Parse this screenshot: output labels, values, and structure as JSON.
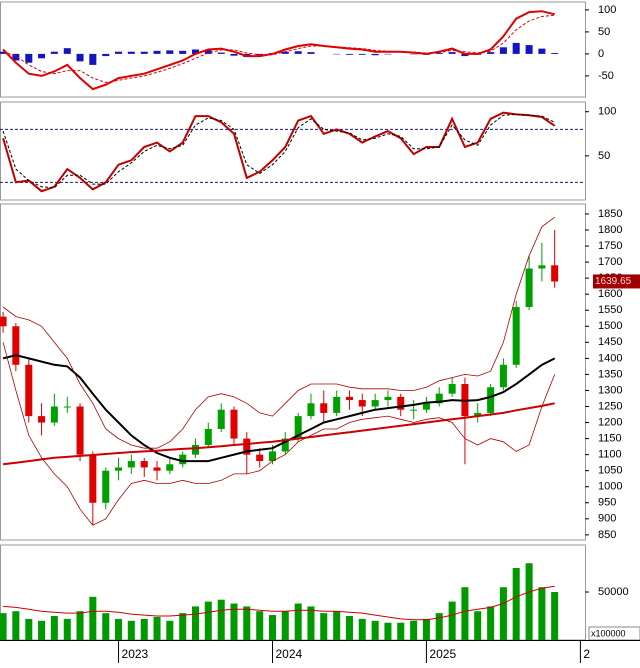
{
  "chart_data": [
    {
      "type": "line",
      "ylim": [
        -98,
        118
      ],
      "yticks": [
        100,
        50,
        0,
        -50
      ],
      "series": [
        {
          "color": "#e00000",
          "values": [
            10,
            -20,
            -45,
            -50,
            -40,
            -25,
            -55,
            -80,
            -70,
            -55,
            -50,
            -45,
            -35,
            -25,
            -15,
            0,
            10,
            12,
            5,
            -5,
            -5,
            0,
            10,
            18,
            22,
            18,
            15,
            12,
            10,
            5,
            5,
            5,
            3,
            0,
            5,
            12,
            0,
            0,
            10,
            40,
            80,
            95,
            97,
            90
          ]
        },
        {
          "color": "#e00000",
          "dashed": true,
          "values": [
            5,
            -5,
            -25,
            -40,
            -45,
            -38,
            -38,
            -55,
            -65,
            -60,
            -55,
            -50,
            -42,
            -33,
            -22,
            -10,
            2,
            9,
            9,
            2,
            -2,
            -2,
            5,
            12,
            18,
            18,
            16,
            14,
            12,
            8,
            6,
            5,
            4,
            2,
            3,
            8,
            5,
            2,
            6,
            25,
            55,
            75,
            85,
            88
          ]
        },
        {
          "type": "bar",
          "color": "#1515c0",
          "values": [
            5,
            -15,
            -20,
            -10,
            5,
            13,
            -17,
            -25,
            -5,
            5,
            5,
            5,
            7,
            8,
            7,
            10,
            8,
            3,
            -4,
            -7,
            -3,
            2,
            5,
            6,
            4,
            0,
            -1,
            -2,
            -2,
            -3,
            -1,
            0,
            -1,
            -2,
            2,
            4,
            -5,
            -2,
            4,
            15,
            25,
            20,
            12,
            2
          ]
        }
      ]
    },
    {
      "type": "line",
      "ylim": [
        0,
        111
      ],
      "yticks": [
        100,
        50
      ],
      "hlines": [
        80,
        20
      ],
      "hline_color": "#1a1a80",
      "series": [
        {
          "color": "#c00000",
          "values": [
            70,
            20,
            22,
            10,
            15,
            35,
            25,
            12,
            20,
            40,
            45,
            60,
            65,
            55,
            65,
            95,
            95,
            88,
            75,
            25,
            32,
            45,
            60,
            90,
            95,
            75,
            80,
            75,
            65,
            72,
            78,
            70,
            52,
            60,
            60,
            92,
            60,
            65,
            92,
            99,
            97,
            96,
            94,
            84
          ]
        },
        {
          "color": "#000000",
          "dashed": true,
          "values": [
            78,
            35,
            22,
            15,
            14,
            28,
            28,
            18,
            18,
            32,
            42,
            55,
            62,
            58,
            62,
            85,
            93,
            90,
            80,
            40,
            30,
            40,
            55,
            82,
            92,
            80,
            78,
            76,
            68,
            70,
            75,
            72,
            58,
            58,
            60,
            85,
            68,
            62,
            85,
            96,
            97,
            96,
            95,
            88
          ]
        }
      ]
    },
    {
      "type": "candlestick",
      "ylim": [
        834,
        1881
      ],
      "yticks": [
        1850,
        1800,
        1750,
        1700,
        1650,
        1600,
        1550,
        1500,
        1450,
        1400,
        1350,
        1300,
        1250,
        1200,
        1150,
        1100,
        1050,
        1000,
        950,
        900,
        850
      ],
      "up_color": "#00a000",
      "down_color": "#e00000",
      "tag_color": "#a00000",
      "open": [
        1530,
        1500,
        1380,
        1220,
        1200,
        1250,
        1250,
        1100,
        950,
        1050,
        1060,
        1080,
        1060,
        1050,
        1070,
        1100,
        1130,
        1180,
        1240,
        1150,
        1100,
        1080,
        1110,
        1150,
        1220,
        1260,
        1230,
        1280,
        1270,
        1250,
        1270,
        1280,
        1240,
        1240,
        1260,
        1290,
        1320,
        1220,
        1230,
        1310,
        1380,
        1560,
        1680,
        1690
      ],
      "high": [
        1545,
        1510,
        1400,
        1260,
        1290,
        1280,
        1260,
        1110,
        1060,
        1090,
        1100,
        1090,
        1080,
        1090,
        1110,
        1150,
        1200,
        1260,
        1250,
        1170,
        1120,
        1130,
        1170,
        1230,
        1290,
        1300,
        1300,
        1300,
        1290,
        1290,
        1300,
        1290,
        1270,
        1280,
        1310,
        1340,
        1340,
        1260,
        1320,
        1400,
        1580,
        1720,
        1760,
        1800
      ],
      "low": [
        1480,
        1360,
        1200,
        1160,
        1190,
        1230,
        1080,
        880,
        930,
        1020,
        1040,
        1030,
        1020,
        1040,
        1060,
        1090,
        1120,
        1170,
        1130,
        1040,
        1060,
        1070,
        1100,
        1140,
        1210,
        1200,
        1220,
        1240,
        1220,
        1240,
        1250,
        1220,
        1210,
        1230,
        1250,
        1280,
        1070,
        1200,
        1220,
        1300,
        1370,
        1550,
        1640,
        1620
      ],
      "close": [
        1500,
        1380,
        1220,
        1200,
        1250,
        1250,
        1100,
        950,
        1050,
        1060,
        1080,
        1060,
        1050,
        1070,
        1100,
        1130,
        1180,
        1240,
        1150,
        1100,
        1080,
        1110,
        1150,
        1220,
        1260,
        1230,
        1280,
        1270,
        1250,
        1270,
        1280,
        1240,
        1240,
        1260,
        1290,
        1320,
        1220,
        1230,
        1310,
        1380,
        1560,
        1680,
        1690,
        1639.65
      ],
      "overlays": [
        {
          "color": "#000000",
          "width": 2,
          "values": [
            1400,
            1410,
            1400,
            1390,
            1380,
            1375,
            1340,
            1290,
            1240,
            1200,
            1160,
            1130,
            1105,
            1090,
            1080,
            1080,
            1080,
            1090,
            1100,
            1110,
            1115,
            1120,
            1140,
            1160,
            1180,
            1200,
            1210,
            1220,
            1230,
            1240,
            1245,
            1250,
            1255,
            1262,
            1265,
            1270,
            1268,
            1270,
            1280,
            1295,
            1320,
            1350,
            1380,
            1400
          ]
        },
        {
          "color": "#cc0000",
          "width": 2,
          "values": [
            1070,
            1075,
            1080,
            1085,
            1090,
            1093,
            1096,
            1099,
            1102,
            1105,
            1108,
            1110,
            1112,
            1115,
            1118,
            1120,
            1123,
            1126,
            1130,
            1133,
            1137,
            1140,
            1145,
            1150,
            1155,
            1160,
            1165,
            1170,
            1175,
            1180,
            1185,
            1190,
            1195,
            1200,
            1205,
            1210,
            1215,
            1220,
            1225,
            1230,
            1238,
            1245,
            1252,
            1260
          ]
        },
        {
          "color": "#b00000",
          "width": 0.8,
          "values": [
            1560,
            1530,
            1520,
            1500,
            1450,
            1400,
            1320,
            1260,
            1180,
            1150,
            1130,
            1120,
            1120,
            1140,
            1180,
            1240,
            1280,
            1290,
            1280,
            1260,
            1230,
            1220,
            1260,
            1300,
            1320,
            1320,
            1320,
            1310,
            1305,
            1305,
            1305,
            1300,
            1300,
            1310,
            1330,
            1340,
            1350,
            1345,
            1360,
            1450,
            1600,
            1720,
            1810,
            1840
          ]
        },
        {
          "color": "#b00000",
          "width": 0.8,
          "values": [
            1450,
            1300,
            1160,
            1090,
            1040,
            1000,
            930,
            880,
            900,
            960,
            1010,
            1020,
            1010,
            1010,
            1020,
            1010,
            1010,
            1020,
            1040,
            1040,
            1050,
            1080,
            1100,
            1140,
            1160,
            1180,
            1180,
            1200,
            1210,
            1215,
            1220,
            1210,
            1200,
            1210,
            1215,
            1200,
            1150,
            1130,
            1150,
            1140,
            1110,
            1130,
            1250,
            1350
          ]
        }
      ]
    },
    {
      "type": "bar",
      "ylim": [
        0,
        99000
      ],
      "yticks": [
        50000
      ],
      "color": "#009a00",
      "ma_color": "#cc0000",
      "axis_multiplier_label": "x100000",
      "xlim": [
        2022.23,
        2026.03
      ],
      "xticks": [
        2023,
        2024,
        2025,
        {
          "value": 2026,
          "label": "2"
        }
      ],
      "x": [
        2022.25,
        2022.333,
        2022.417,
        2022.5,
        2022.583,
        2022.667,
        2022.75,
        2022.833,
        2022.917,
        2023,
        2023.083,
        2023.167,
        2023.25,
        2023.333,
        2023.417,
        2023.5,
        2023.583,
        2023.667,
        2023.75,
        2023.833,
        2023.917,
        2024,
        2024.083,
        2024.167,
        2024.25,
        2024.333,
        2024.417,
        2024.5,
        2024.583,
        2024.667,
        2024.75,
        2024.833,
        2024.917,
        2025,
        2025.083,
        2025.167,
        2025.25,
        2025.333,
        2025.417,
        2025.5,
        2025.583,
        2025.667,
        2025.75,
        2025.833
      ],
      "values": [
        28000,
        30000,
        22000,
        20000,
        25000,
        22000,
        30000,
        45000,
        28000,
        22000,
        20000,
        22000,
        24000,
        20000,
        28000,
        35000,
        40000,
        42000,
        38000,
        35000,
        30000,
        26000,
        30000,
        38000,
        35000,
        28000,
        30000,
        25000,
        22000,
        20000,
        18000,
        18000,
        20000,
        22000,
        28000,
        40000,
        55000,
        30000,
        35000,
        55000,
        75000,
        80000,
        55000,
        50000
      ],
      "ma_values": [
        35000,
        34000,
        32000,
        30000,
        29000,
        28000,
        28000,
        30000,
        30000,
        29000,
        27000,
        26000,
        25000,
        25000,
        26000,
        27000,
        29000,
        31000,
        32000,
        32000,
        31000,
        30000,
        30000,
        31000,
        31000,
        30000,
        30000,
        29000,
        28000,
        26000,
        24000,
        22000,
        21000,
        21000,
        23000,
        26000,
        30000,
        32000,
        34000,
        38000,
        45000,
        50000,
        54000,
        56000
      ]
    }
  ]
}
